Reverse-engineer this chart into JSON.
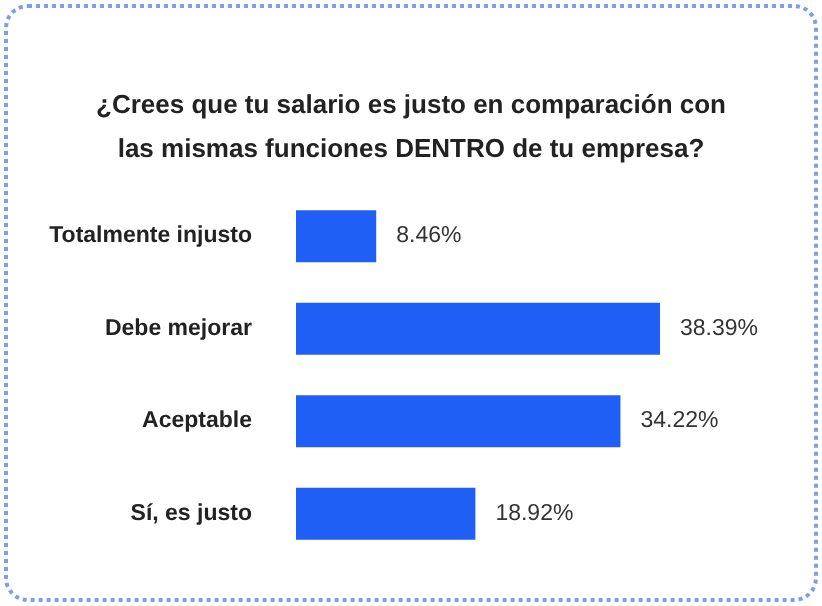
{
  "chart_data": {
    "type": "bar",
    "orientation": "horizontal",
    "title": "¿Crees que tu salario es justo en comparación con\nlas mismas funciones DENTRO de tu empresa?",
    "categories": [
      "Totalmente injusto",
      "Debe mejorar",
      "Aceptable",
      "Sí, es justo"
    ],
    "values": [
      8.46,
      38.39,
      34.22,
      18.92
    ],
    "value_labels": [
      "8.46%",
      "38.39%",
      "34.22%",
      "18.92%"
    ],
    "color": "#1f5ff5"
  }
}
